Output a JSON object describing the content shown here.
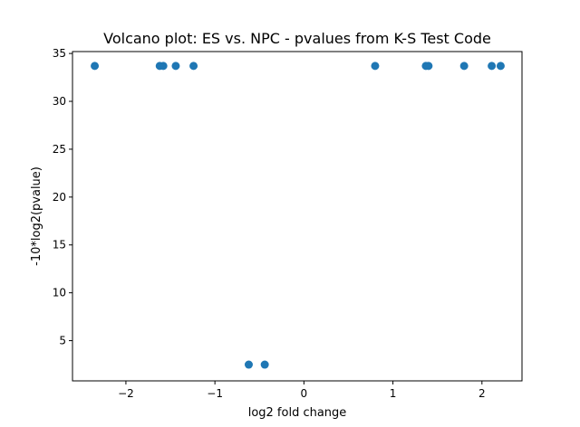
{
  "chart_data": {
    "type": "scatter",
    "title": "Volcano plot: ES vs. NPC - pvalues from K-S Test Code",
    "xlabel": "log2 fold change",
    "ylabel": "-10*log2(pvalue)",
    "xlim": [
      -2.6,
      2.45
    ],
    "ylim": [
      0.8,
      35.2
    ],
    "xticks": [
      -2,
      -1,
      0,
      1,
      2
    ],
    "xtick_labels": [
      "−2",
      "−1",
      "0",
      "1",
      "2"
    ],
    "yticks": [
      5,
      10,
      15,
      20,
      25,
      30,
      35
    ],
    "ytick_labels": [
      "5",
      "10",
      "15",
      "20",
      "25",
      "30",
      "35"
    ],
    "grid": false,
    "marker_color": "#1f77b4",
    "series": [
      {
        "x": [
          -2.35,
          -1.62,
          -1.58,
          -1.44,
          -1.24,
          0.8,
          1.37,
          1.4,
          1.8,
          2.11,
          2.21,
          -0.62,
          -0.44
        ],
        "y": [
          33.7,
          33.7,
          33.7,
          33.7,
          33.7,
          33.7,
          33.7,
          33.7,
          33.7,
          33.7,
          33.7,
          2.5,
          2.5
        ]
      }
    ]
  }
}
